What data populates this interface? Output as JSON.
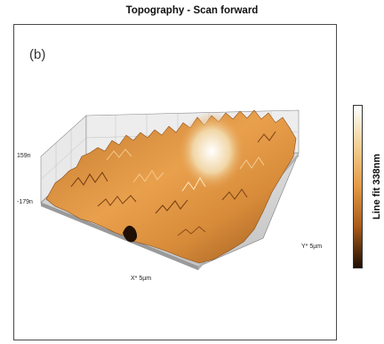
{
  "chart_data": {
    "type": "surface",
    "title": "Topography - Scan forward",
    "panel_label": "(b)",
    "z_axis": {
      "max_label": "159n",
      "min_label": "-179n"
    },
    "x_axis_label": "X* 5µm",
    "y_axis_label": "Y* 5µm",
    "colorbar": {
      "label": "Line fit  338nm",
      "colors": [
        "#ffffff",
        "#f3cf93",
        "#e39a45",
        "#a75a1a",
        "#1f0f04"
      ]
    }
  }
}
